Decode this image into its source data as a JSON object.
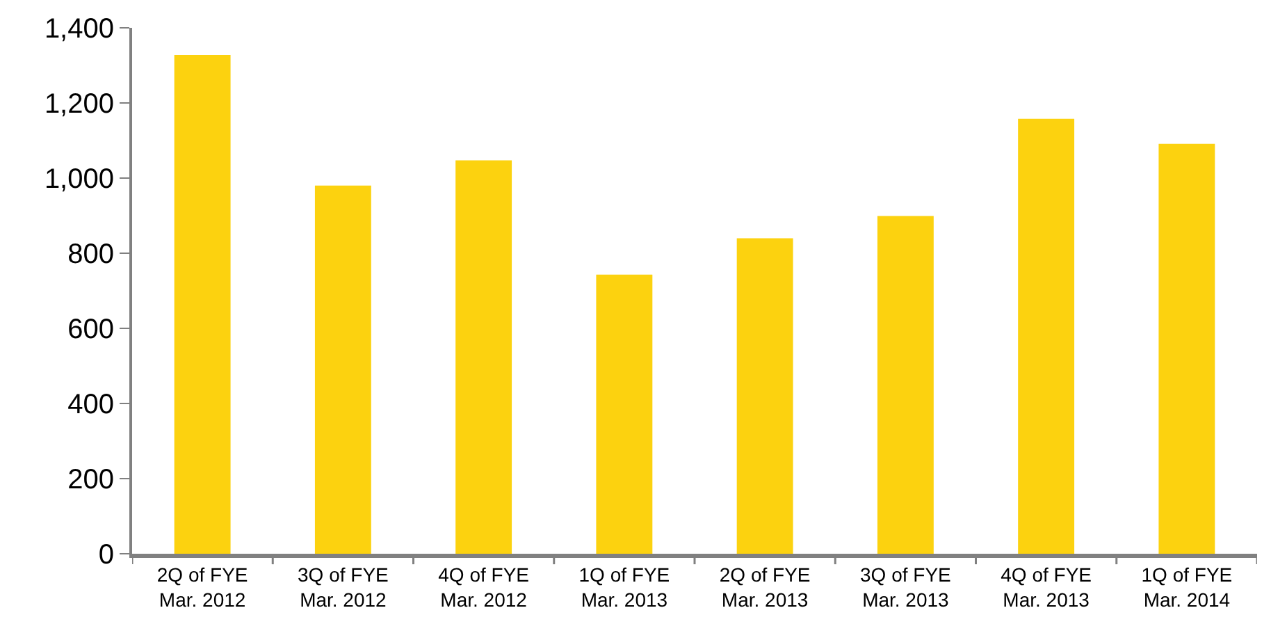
{
  "chart_data": {
    "type": "bar",
    "categories": [
      "2Q of FYE\nMar. 2012",
      "3Q of FYE\nMar. 2012",
      "4Q of FYE\nMar. 2012",
      "1Q of FYE\nMar. 2013",
      "2Q of FYE\nMar. 2013",
      "3Q of FYE\nMar. 2013",
      "4Q of FYE\nMar. 2013",
      "1Q of FYE\nMar. 2014"
    ],
    "values": [
      1328,
      980,
      1047,
      743,
      840,
      899,
      1158,
      1091
    ],
    "color": "#fcd20f",
    "ylim": [
      0,
      1400
    ],
    "yticks": [
      {
        "value": 0,
        "label": "0"
      },
      {
        "value": 200,
        "label": "200"
      },
      {
        "value": 400,
        "label": "400"
      },
      {
        "value": 600,
        "label": "600"
      },
      {
        "value": 800,
        "label": "800"
      },
      {
        "value": 1000,
        "label": "1,000"
      },
      {
        "value": 1200,
        "label": "1,200"
      },
      {
        "value": 1400,
        "label": "1,400"
      }
    ],
    "grid": false
  }
}
